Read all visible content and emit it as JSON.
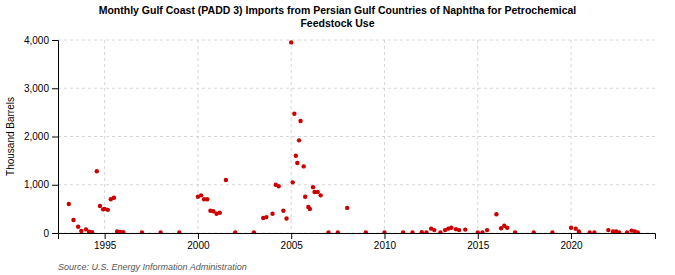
{
  "chart_data": {
    "type": "scatter",
    "title": "Monthly Gulf Coast (PADD 3) Imports from Persian Gulf Countries of Naphtha for Petrochemical\nFeedstock Use",
    "ylabel": "Thousand Barrels",
    "source": "Source: U.S. Energy Information Administration",
    "color": "#cc0000",
    "grid": true,
    "xlim": [
      1992.5,
      2024.5
    ],
    "xticks": [
      1995,
      2000,
      2005,
      2010,
      2015,
      2020
    ],
    "ylim": [
      0,
      4000
    ],
    "yticks": [
      0,
      {
        "value": 1000,
        "label": "1,000"
      },
      {
        "value": 2000,
        "label": "2,000"
      },
      {
        "value": 3000,
        "label": "3,000"
      },
      {
        "value": 4000,
        "label": "4,000"
      }
    ],
    "x": [
      1993.08,
      1993.33,
      1993.58,
      1993.75,
      1994.0,
      1994.17,
      1994.33,
      1994.58,
      1994.75,
      1994.92,
      1995.0,
      1995.17,
      1995.33,
      1995.5,
      1995.67,
      1995.83,
      1996.0,
      1997.0,
      1998.0,
      1999.0,
      2000.0,
      2000.17,
      2000.33,
      2000.5,
      2000.67,
      2000.83,
      2001.0,
      2001.17,
      2001.5,
      2002.0,
      2003.0,
      2003.5,
      2003.67,
      2004.0,
      2004.17,
      2004.33,
      2004.58,
      2004.75,
      2005.0,
      2005.08,
      2005.17,
      2005.25,
      2005.33,
      2005.42,
      2005.5,
      2005.67,
      2005.75,
      2005.92,
      2006.0,
      2006.17,
      2006.25,
      2006.42,
      2006.58,
      2007.0,
      2007.5,
      2008.0,
      2009.0,
      2010.0,
      2011.0,
      2011.5,
      2012.0,
      2012.25,
      2012.5,
      2012.67,
      2013.0,
      2013.25,
      2013.42,
      2013.58,
      2013.83,
      2014.0,
      2014.33,
      2015.0,
      2015.25,
      2015.5,
      2016.0,
      2016.25,
      2016.42,
      2016.58,
      2017.0,
      2018.0,
      2019.0,
      2020.0,
      2020.25,
      2020.42,
      2021.0,
      2021.25,
      2022.0,
      2022.25,
      2022.42,
      2022.58,
      2023.0,
      2023.25,
      2023.42,
      2023.58
    ],
    "values": [
      600,
      270,
      130,
      40,
      75,
      25,
      15,
      1280,
      560,
      490,
      500,
      480,
      700,
      730,
      30,
      20,
      15,
      10,
      10,
      10,
      750,
      780,
      700,
      700,
      460,
      450,
      400,
      420,
      1100,
      10,
      10,
      310,
      330,
      400,
      1000,
      970,
      460,
      300,
      3950,
      1050,
      2470,
      1600,
      1450,
      1920,
      2320,
      1380,
      750,
      540,
      500,
      950,
      850,
      850,
      780,
      10,
      10,
      520,
      10,
      10,
      10,
      10,
      15,
      10,
      90,
      60,
      10,
      60,
      90,
      110,
      80,
      60,
      70,
      10,
      10,
      60,
      390,
      100,
      150,
      110,
      10,
      10,
      10,
      110,
      90,
      30,
      10,
      10,
      60,
      30,
      30,
      10,
      10,
      50,
      30,
      10
    ]
  }
}
